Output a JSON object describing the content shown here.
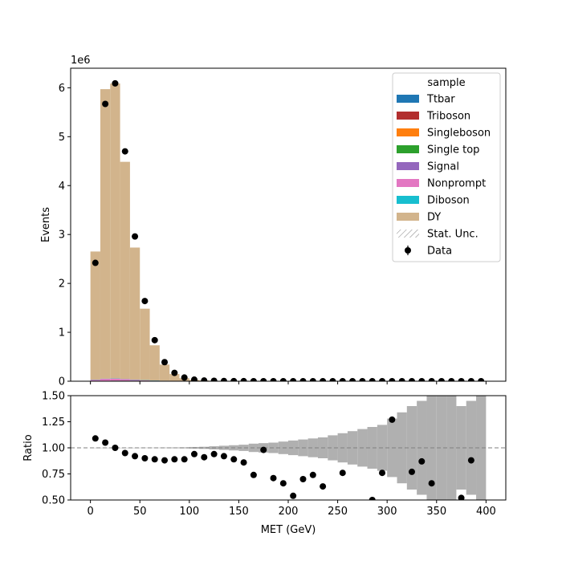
{
  "chart_data": [
    {
      "type": "bar",
      "panel": "main",
      "stacked": true,
      "ylabel": "Events",
      "y_offset_label": "1e6",
      "xlim": [
        -20,
        420
      ],
      "ylim": [
        0,
        6400000
      ],
      "yticks": [
        0,
        1,
        2,
        3,
        4,
        5,
        6
      ],
      "bin_edges": [
        0,
        10,
        20,
        30,
        40,
        50,
        60,
        70,
        80,
        90,
        100,
        110,
        120,
        130,
        140,
        150,
        160,
        170,
        180,
        190,
        200,
        210,
        220,
        230,
        240,
        250,
        260,
        270,
        280,
        290,
        300,
        310,
        320,
        330,
        340,
        350,
        360,
        370,
        380,
        390,
        400
      ],
      "series": [
        {
          "name": "Ttbar",
          "color": "#1f77b4",
          "values": [
            3000,
            5000,
            8000,
            9000,
            9000,
            8000,
            6000,
            5000,
            4000,
            3000,
            2500,
            2000,
            1500,
            1200,
            1000,
            800,
            600,
            500,
            400,
            300,
            250,
            200,
            150,
            120,
            100,
            80,
            60,
            50,
            40,
            30,
            25,
            20,
            15,
            12,
            10,
            8,
            6,
            5,
            4,
            3
          ]
        },
        {
          "name": "Triboson",
          "color": "#b22e2e",
          "values": [
            10,
            15,
            15,
            15,
            12,
            10,
            8,
            6,
            5,
            4,
            3,
            3,
            2,
            2,
            2,
            1,
            1,
            1,
            1,
            1,
            0,
            0,
            0,
            0,
            0,
            0,
            0,
            0,
            0,
            0,
            0,
            0,
            0,
            0,
            0,
            0,
            0,
            0,
            0,
            0
          ]
        },
        {
          "name": "Singleboson",
          "color": "#ff7f0e",
          "values": [
            2000,
            3000,
            3000,
            2500,
            2000,
            1500,
            1000,
            700,
            400,
            300,
            200,
            150,
            100,
            80,
            60,
            40,
            30,
            20,
            15,
            10,
            8,
            6,
            5,
            4,
            3,
            2,
            2,
            1,
            1,
            1,
            1,
            1,
            0,
            0,
            0,
            0,
            0,
            0,
            0,
            0
          ]
        },
        {
          "name": "Single top",
          "color": "#2ca02c",
          "values": [
            500,
            800,
            1000,
            1000,
            900,
            800,
            600,
            500,
            400,
            300,
            250,
            200,
            150,
            120,
            100,
            80,
            60,
            50,
            40,
            30,
            25,
            20,
            15,
            12,
            10,
            8,
            6,
            5,
            4,
            3,
            2,
            2,
            1,
            1,
            1,
            1,
            1,
            0,
            0,
            0
          ]
        },
        {
          "name": "Signal",
          "color": "#9467bd",
          "values": [
            100,
            200,
            300,
            300,
            250,
            200,
            150,
            100,
            80,
            60,
            50,
            40,
            30,
            25,
            20,
            15,
            12,
            10,
            8,
            6,
            5,
            4,
            3,
            2,
            2,
            1,
            1,
            1,
            1,
            1,
            0,
            0,
            0,
            0,
            0,
            0,
            0,
            0,
            0,
            0
          ]
        },
        {
          "name": "Nonprompt",
          "color": "#e377c2",
          "values": [
            25000,
            40000,
            42000,
            30000,
            18000,
            10000,
            5000,
            2500,
            1200,
            600,
            300,
            150,
            80,
            40,
            20,
            10,
            5,
            3,
            2,
            1,
            1,
            0,
            0,
            0,
            0,
            0,
            0,
            0,
            0,
            0,
            0,
            0,
            0,
            0,
            0,
            0,
            0,
            0,
            0,
            0
          ]
        },
        {
          "name": "Diboson",
          "color": "#17becf",
          "values": [
            1500,
            3000,
            3500,
            3200,
            2800,
            2300,
            1800,
            1400,
            1000,
            700,
            500,
            380,
            280,
            200,
            150,
            110,
            80,
            60,
            45,
            34,
            26,
            20,
            15,
            12,
            9,
            7,
            5,
            4,
            3,
            2,
            2,
            1,
            1,
            1,
            1,
            1,
            0,
            0,
            0,
            0
          ]
        },
        {
          "name": "DY",
          "color": "#d2b48c",
          "values": [
            2620000,
            5920000,
            6030000,
            4440000,
            2700000,
            1460000,
            720000,
            330000,
            140000,
            57000,
            24000,
            12000,
            6000,
            3000,
            1700,
            1000,
            600,
            350,
            220,
            140,
            90,
            60,
            40,
            28,
            20,
            14,
            10,
            7,
            5,
            4,
            3,
            2,
            2,
            1,
            1,
            1,
            1,
            1,
            1,
            0
          ]
        }
      ],
      "data_points": {
        "name": "Data",
        "x": [
          5,
          15,
          25,
          35,
          45,
          55,
          65,
          75,
          85,
          95,
          105,
          115,
          125,
          135,
          145,
          155,
          165,
          175,
          185,
          195,
          205,
          215,
          225,
          235,
          245,
          255,
          265,
          275,
          285,
          295,
          305,
          315,
          325,
          335,
          345,
          355,
          365,
          375,
          385,
          395
        ],
        "y": [
          2420000,
          5670000,
          6090000,
          4700000,
          2960000,
          1640000,
          840000,
          390000,
          170000,
          75000,
          32000,
          14000,
          8000,
          4000,
          2000,
          1200,
          700,
          400,
          260,
          160,
          100,
          70,
          45,
          30,
          22,
          15,
          10,
          8,
          5,
          4,
          3,
          2,
          2,
          1,
          1,
          1,
          1,
          1,
          1,
          0
        ]
      },
      "legend": {
        "title": "sample",
        "position": "top-right",
        "entries": [
          "Ttbar",
          "Triboson",
          "Singleboson",
          "Single top",
          "Signal",
          "Nonprompt",
          "Diboson",
          "DY",
          "Stat. Unc.",
          "Data"
        ]
      }
    },
    {
      "type": "scatter",
      "panel": "ratio",
      "xlabel": "MET (GeV)",
      "ylabel": "Ratio",
      "xlim": [
        -20,
        420
      ],
      "ylim": [
        0.5,
        1.5
      ],
      "xticks": [
        0,
        50,
        100,
        150,
        200,
        250,
        300,
        350,
        400
      ],
      "yticks": [
        "0.50",
        "0.75",
        "1.00",
        "1.25",
        "1.50"
      ],
      "reference_line": 1.0,
      "bin_edges": [
        0,
        10,
        20,
        30,
        40,
        50,
        60,
        70,
        80,
        90,
        100,
        110,
        120,
        130,
        140,
        150,
        160,
        170,
        180,
        190,
        200,
        210,
        220,
        230,
        240,
        250,
        260,
        270,
        280,
        290,
        300,
        310,
        320,
        330,
        340,
        350,
        360,
        370,
        380,
        390,
        400
      ],
      "uncertainty_halfwidth": [
        0.001,
        0.001,
        0.001,
        0.001,
        0.001,
        0.002,
        0.002,
        0.003,
        0.004,
        0.005,
        0.008,
        0.01,
        0.015,
        0.02,
        0.025,
        0.03,
        0.04,
        0.045,
        0.05,
        0.06,
        0.07,
        0.08,
        0.09,
        0.1,
        0.12,
        0.14,
        0.16,
        0.18,
        0.2,
        0.22,
        0.28,
        0.34,
        0.4,
        0.45,
        0.5,
        0.5,
        0.52,
        0.4,
        0.45,
        0.5
      ],
      "x": [
        5,
        15,
        25,
        35,
        45,
        55,
        65,
        75,
        85,
        95,
        105,
        115,
        125,
        135,
        145,
        155,
        165,
        175,
        185,
        195,
        205,
        215,
        225,
        235,
        245,
        255,
        265,
        275,
        285,
        295,
        305,
        315,
        325,
        335,
        345,
        355,
        365,
        375,
        385,
        395
      ],
      "y": [
        1.09,
        1.05,
        1.0,
        0.95,
        0.92,
        0.9,
        0.89,
        0.88,
        0.89,
        0.89,
        0.94,
        0.91,
        0.94,
        0.92,
        0.89,
        0.86,
        0.74,
        0.98,
        0.71,
        0.66,
        0.54,
        0.7,
        0.74,
        0.63,
        null,
        0.76,
        null,
        null,
        0.5,
        0.76,
        1.27,
        null,
        0.77,
        0.87,
        0.66,
        null,
        null,
        0.52,
        0.88,
        null
      ]
    }
  ]
}
